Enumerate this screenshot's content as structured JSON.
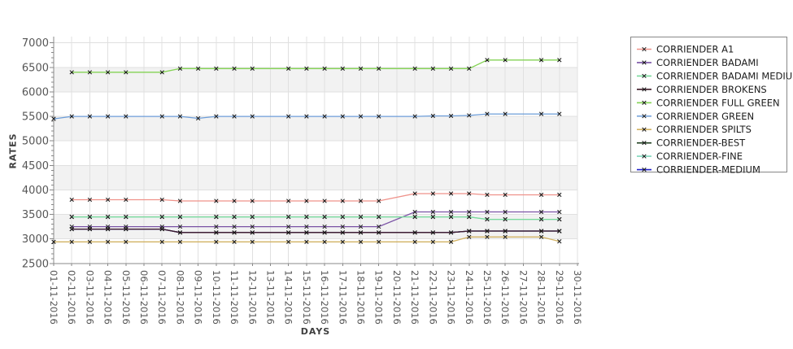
{
  "chart_data": {
    "type": "line",
    "title": "",
    "xlabel": "DAYS",
    "ylabel": "RATES",
    "ylim": [
      2500,
      7000
    ],
    "y_tick_step": 500,
    "y_minor_step": 100,
    "grid": true,
    "legend_position": "right",
    "marker": "x",
    "marker_color": "#161616",
    "band_color": "#f2f2f2",
    "grid_color": "#e0e0e0",
    "axis_color": "#888888",
    "tick_label_color": "#565656",
    "bands": [
      [
        3000,
        3500
      ],
      [
        4000,
        4500
      ],
      [
        5000,
        5500
      ],
      [
        6000,
        6500
      ]
    ],
    "x_categories": [
      "01-11-2016",
      "02-11-2016",
      "03-11-2016",
      "04-11-2016",
      "05-11-2016",
      "06-11-2016",
      "07-11-2016",
      "08-11-2016",
      "09-11-2016",
      "10-11-2016",
      "11-11-2016",
      "12-11-2016",
      "13-11-2016",
      "14-11-2016",
      "15-11-2016",
      "16-11-2016",
      "17-11-2016",
      "18-11-2016",
      "19-11-2016",
      "20-11-2016",
      "21-11-2016",
      "22-11-2016",
      "23-11-2016",
      "24-11-2016",
      "25-11-2016",
      "26-11-2016",
      "27-11-2016",
      "28-11-2016",
      "29-11-2016",
      "30-11-2016"
    ],
    "series": [
      {
        "name": "CORRIENDER A1",
        "color": "#ef928a",
        "z": 0,
        "points": [
          [
            2,
            3800
          ],
          [
            3,
            3800
          ],
          [
            4,
            3800
          ],
          [
            5,
            3800
          ],
          [
            7,
            3800
          ],
          [
            8,
            3775
          ],
          [
            10,
            3775
          ],
          [
            11,
            3775
          ],
          [
            12,
            3775
          ],
          [
            14,
            3775
          ],
          [
            15,
            3775
          ],
          [
            16,
            3775
          ],
          [
            17,
            3775
          ],
          [
            18,
            3775
          ],
          [
            19,
            3775
          ],
          [
            21,
            3925
          ],
          [
            22,
            3925
          ],
          [
            23,
            3925
          ],
          [
            24,
            3925
          ],
          [
            25,
            3900
          ],
          [
            26,
            3900
          ],
          [
            28,
            3900
          ],
          [
            29,
            3900
          ]
        ]
      },
      {
        "name": "CORRIENDER BADAMI",
        "color": "#7a52a5",
        "z": 0,
        "points": [
          [
            2,
            3250
          ],
          [
            3,
            3250
          ],
          [
            4,
            3250
          ],
          [
            5,
            3250
          ],
          [
            7,
            3250
          ],
          [
            8,
            3250
          ],
          [
            10,
            3250
          ],
          [
            11,
            3250
          ],
          [
            12,
            3250
          ],
          [
            14,
            3250
          ],
          [
            15,
            3250
          ],
          [
            16,
            3250
          ],
          [
            17,
            3250
          ],
          [
            18,
            3250
          ],
          [
            19,
            3250
          ],
          [
            21,
            3550
          ],
          [
            22,
            3550
          ],
          [
            23,
            3550
          ],
          [
            24,
            3550
          ],
          [
            25,
            3550
          ],
          [
            26,
            3550
          ],
          [
            28,
            3550
          ],
          [
            29,
            3550
          ]
        ]
      },
      {
        "name": "CORRIENDER BADAMI MEDIUM",
        "color": "#79da9b",
        "z": 1,
        "points": [
          [
            2,
            3450
          ],
          [
            3,
            3450
          ],
          [
            4,
            3450
          ],
          [
            5,
            3450
          ],
          [
            7,
            3450
          ],
          [
            8,
            3450
          ],
          [
            10,
            3450
          ],
          [
            11,
            3450
          ],
          [
            12,
            3450
          ],
          [
            14,
            3450
          ],
          [
            15,
            3450
          ],
          [
            16,
            3450
          ],
          [
            17,
            3450
          ],
          [
            18,
            3450
          ],
          [
            19,
            3450
          ],
          [
            21,
            3450
          ],
          [
            22,
            3450
          ],
          [
            23,
            3450
          ],
          [
            24,
            3450
          ],
          [
            25,
            3400
          ],
          [
            26,
            3400
          ],
          [
            28,
            3400
          ],
          [
            29,
            3400
          ]
        ]
      },
      {
        "name": "CORRIENDER BROKENS",
        "color": "#3f1b29",
        "z": 1,
        "points": [
          [
            2,
            3200
          ],
          [
            3,
            3200
          ],
          [
            4,
            3200
          ],
          [
            5,
            3200
          ],
          [
            7,
            3200
          ],
          [
            8,
            3130
          ],
          [
            10,
            3130
          ],
          [
            11,
            3130
          ],
          [
            12,
            3130
          ],
          [
            14,
            3130
          ],
          [
            15,
            3130
          ],
          [
            16,
            3130
          ],
          [
            17,
            3130
          ],
          [
            18,
            3130
          ],
          [
            19,
            3130
          ],
          [
            21,
            3130
          ],
          [
            22,
            3130
          ],
          [
            23,
            3130
          ],
          [
            24,
            3160
          ],
          [
            25,
            3160
          ],
          [
            26,
            3160
          ],
          [
            28,
            3160
          ],
          [
            29,
            3160
          ]
        ]
      },
      {
        "name": "CORRIENDER FULL GREEN",
        "color": "#84d354",
        "z": 0,
        "points": [
          [
            2,
            6400
          ],
          [
            3,
            6400
          ],
          [
            4,
            6400
          ],
          [
            5,
            6400
          ],
          [
            7,
            6400
          ],
          [
            8,
            6475
          ],
          [
            9,
            6475
          ],
          [
            10,
            6475
          ],
          [
            11,
            6475
          ],
          [
            12,
            6475
          ],
          [
            14,
            6475
          ],
          [
            15,
            6475
          ],
          [
            16,
            6475
          ],
          [
            17,
            6475
          ],
          [
            18,
            6475
          ],
          [
            19,
            6475
          ],
          [
            21,
            6475
          ],
          [
            22,
            6475
          ],
          [
            23,
            6475
          ],
          [
            24,
            6475
          ],
          [
            25,
            6650
          ],
          [
            26,
            6650
          ],
          [
            28,
            6650
          ],
          [
            29,
            6650
          ]
        ]
      },
      {
        "name": "CORRIENDER GREEN",
        "color": "#6c9dd9",
        "z": 0,
        "points": [
          [
            1,
            5450
          ],
          [
            2,
            5500
          ],
          [
            3,
            5500
          ],
          [
            4,
            5500
          ],
          [
            5,
            5500
          ],
          [
            7,
            5500
          ],
          [
            8,
            5500
          ],
          [
            9,
            5460
          ],
          [
            10,
            5500
          ],
          [
            11,
            5500
          ],
          [
            12,
            5500
          ],
          [
            14,
            5500
          ],
          [
            15,
            5500
          ],
          [
            16,
            5500
          ],
          [
            17,
            5500
          ],
          [
            18,
            5500
          ],
          [
            19,
            5500
          ],
          [
            21,
            5500
          ],
          [
            22,
            5510
          ],
          [
            23,
            5510
          ],
          [
            24,
            5520
          ],
          [
            25,
            5550
          ],
          [
            26,
            5550
          ],
          [
            28,
            5550
          ],
          [
            29,
            5550
          ]
        ]
      },
      {
        "name": "CORRIENDER SPILTS",
        "color": "#d2b263",
        "z": 0,
        "points": [
          [
            1,
            2940
          ],
          [
            2,
            2940
          ],
          [
            3,
            2940
          ],
          [
            4,
            2940
          ],
          [
            5,
            2940
          ],
          [
            7,
            2940
          ],
          [
            8,
            2940
          ],
          [
            10,
            2940
          ],
          [
            11,
            2940
          ],
          [
            12,
            2940
          ],
          [
            14,
            2940
          ],
          [
            15,
            2940
          ],
          [
            16,
            2940
          ],
          [
            17,
            2940
          ],
          [
            18,
            2940
          ],
          [
            19,
            2940
          ],
          [
            21,
            2940
          ],
          [
            22,
            2940
          ],
          [
            23,
            2940
          ],
          [
            24,
            3040
          ],
          [
            25,
            3040
          ],
          [
            26,
            3040
          ],
          [
            28,
            3040
          ],
          [
            29,
            2950
          ]
        ]
      },
      {
        "name": "CORRIENDER-BEST",
        "color": "#1e3e1e",
        "z": 0,
        "points": [
          [
            2,
            3200
          ],
          [
            3,
            3200
          ],
          [
            4,
            3200
          ],
          [
            5,
            3200
          ],
          [
            7,
            3200
          ],
          [
            8,
            3130
          ],
          [
            10,
            3130
          ],
          [
            11,
            3130
          ],
          [
            12,
            3130
          ],
          [
            14,
            3130
          ],
          [
            15,
            3130
          ],
          [
            16,
            3130
          ],
          [
            17,
            3130
          ],
          [
            18,
            3130
          ],
          [
            19,
            3130
          ],
          [
            21,
            3130
          ],
          [
            22,
            3130
          ],
          [
            23,
            3130
          ],
          [
            24,
            3160
          ],
          [
            25,
            3160
          ],
          [
            26,
            3160
          ],
          [
            28,
            3160
          ],
          [
            29,
            3160
          ]
        ]
      },
      {
        "name": "CORRIENDER-FINE",
        "color": "#7ed7bc",
        "z": 0,
        "points": [
          [
            2,
            3450
          ],
          [
            3,
            3450
          ],
          [
            4,
            3450
          ],
          [
            5,
            3450
          ],
          [
            7,
            3450
          ],
          [
            8,
            3450
          ],
          [
            10,
            3450
          ],
          [
            11,
            3450
          ],
          [
            12,
            3450
          ],
          [
            14,
            3450
          ],
          [
            15,
            3450
          ],
          [
            16,
            3450
          ],
          [
            17,
            3450
          ],
          [
            18,
            3450
          ],
          [
            19,
            3450
          ],
          [
            21,
            3450
          ],
          [
            22,
            3450
          ],
          [
            23,
            3450
          ],
          [
            24,
            3450
          ],
          [
            25,
            3400
          ],
          [
            26,
            3400
          ],
          [
            28,
            3400
          ],
          [
            29,
            3400
          ]
        ]
      },
      {
        "name": "CORRIENDER-MEDIUM",
        "color": "#2020c8",
        "z": 0,
        "points": [
          [
            2,
            3200
          ],
          [
            3,
            3200
          ],
          [
            4,
            3200
          ],
          [
            5,
            3200
          ],
          [
            7,
            3200
          ],
          [
            8,
            3130
          ],
          [
            10,
            3130
          ],
          [
            11,
            3130
          ],
          [
            12,
            3130
          ],
          [
            14,
            3130
          ],
          [
            15,
            3130
          ],
          [
            16,
            3130
          ],
          [
            17,
            3130
          ],
          [
            18,
            3130
          ],
          [
            19,
            3130
          ],
          [
            21,
            3130
          ],
          [
            22,
            3130
          ],
          [
            23,
            3130
          ],
          [
            24,
            3160
          ],
          [
            25,
            3160
          ],
          [
            26,
            3160
          ],
          [
            28,
            3160
          ],
          [
            29,
            3160
          ]
        ]
      }
    ]
  }
}
